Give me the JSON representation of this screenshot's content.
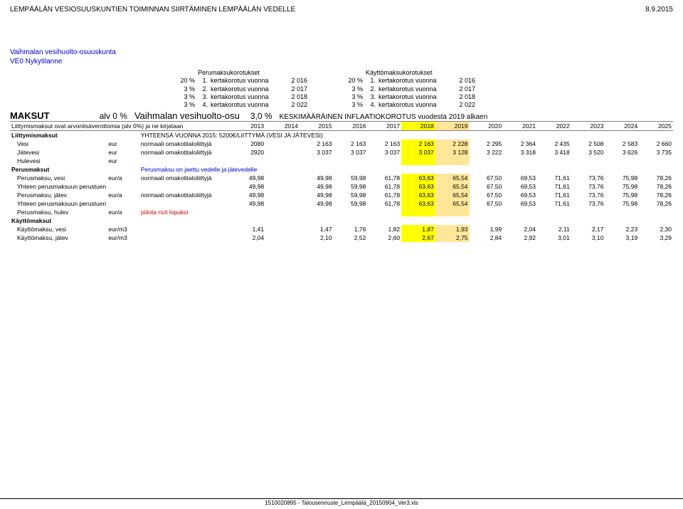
{
  "header": {
    "title": "LEMPÄÄLÄN VESIOSUUSKUNTIEN TOIMINNAN SIIRTÄMINEN LEMPÄÄLÄN VEDELLE",
    "date": "8.9.2015"
  },
  "title_block": {
    "line1": "Vaihmalan vesihuolto-osuuskunta",
    "line2": "VE0 Nykytilanne"
  },
  "korotukset": {
    "perus": {
      "title": "Perumaksukorotukset",
      "rows": [
        {
          "pct": "20 %",
          "ord": "1.",
          "label": "kertakorotus vuonna",
          "year": "2 016"
        },
        {
          "pct": "3 %",
          "ord": "2.",
          "label": "kertakorotus vuonna",
          "year": "2 017"
        },
        {
          "pct": "3 %",
          "ord": "3.",
          "label": "kertakorotus vuonna",
          "year": "2 018"
        },
        {
          "pct": "3 %",
          "ord": "4.",
          "label": "kertakorotus vuonna",
          "year": "2 022"
        }
      ]
    },
    "kaytto": {
      "title": "Käyttömaksukorotukset",
      "rows": [
        {
          "pct": "20 %",
          "ord": "1.",
          "label": "kertakorotus vuonna",
          "year": "2 016"
        },
        {
          "pct": "3 %",
          "ord": "2.",
          "label": "kertakorotus vuonna",
          "year": "2 017"
        },
        {
          "pct": "3 %",
          "ord": "3.",
          "label": "kertakorotus vuonna",
          "year": "2 018"
        },
        {
          "pct": "3 %",
          "ord": "4.",
          "label": "kertakorotus vuonna",
          "year": "2 022"
        }
      ]
    }
  },
  "maksut_row": {
    "big": "MAKSUT",
    "alv": "alv 0 %",
    "mid": "Vaihmalan vesihuolto-osu",
    "pct": "3,0 %",
    "rest": "KESKIMÄÄRÄINEN INFLAATIOKOROTUS vuodesta 2019 alkaen"
  },
  "year_header": {
    "first": "Liittymismaksut ovat arvonlisäverottomia (alv 0%) ja ne kirjataan",
    "years": [
      "2013",
      "2014",
      "2015",
      "2016",
      "2017",
      "2018",
      "2019",
      "2020",
      "2021",
      "2022",
      "2023",
      "2024",
      "2025"
    ]
  },
  "liittymis": {
    "section": "Liittymismaksut",
    "note": "YHTEENSÄ VUONNA 2015: 5200€/LIITTYMÄ (VESI JA JÄTEVESI)",
    "rows": [
      {
        "label": "Vesi",
        "unit": "eur",
        "desc": "normaali omakotitaloliittyjä",
        "y13": "2080",
        "vals": [
          "2 163",
          "2 163",
          "2 163",
          "2 163",
          "2 228",
          "2 295",
          "2 364",
          "2 435",
          "2 508",
          "2 583",
          "2 660"
        ]
      },
      {
        "label": "Jätevesi",
        "unit": "eur",
        "desc": "normaali omakotitaloliittyjä",
        "y13": "2920",
        "vals": [
          "3 037",
          "3 037",
          "3 037",
          "3 037",
          "3 128",
          "3 222",
          "3 318",
          "3 418",
          "3 520",
          "3 626",
          "3 735"
        ]
      },
      {
        "label": "Hulevesi",
        "unit": "eur",
        "desc": "",
        "y13": "",
        "vals": [
          "",
          "",
          "",
          "",
          "",
          "",
          "",
          "",
          "",
          "",
          ""
        ]
      }
    ]
  },
  "perusmaksut": {
    "section": "Perusmaksut",
    "note": "Perusmaksu on jaettu vedelle ja jätevedelle",
    "rows": [
      {
        "label": "Perusmaksu, vesi",
        "unit": "eur/a",
        "desc": "normaali omakotitaloliittyjä",
        "y13": "49,98",
        "vals": [
          "49,98",
          "59,98",
          "61,78",
          "63,63",
          "65,54",
          "67,50",
          "69,53",
          "71,61",
          "73,76",
          "75,98",
          "78,26"
        ]
      },
      {
        "label": "Yhteen perusmaksuun perustuen:",
        "unit": "",
        "desc": "",
        "y13": "49,98",
        "vals": [
          "49,98",
          "59,98",
          "61,78",
          "63,63",
          "65,54",
          "67,50",
          "69,53",
          "71,61",
          "73,76",
          "75,98",
          "78,26"
        ]
      },
      {
        "label": "Perusmaksu, jätev",
        "unit": "eur/a",
        "desc": "normaali omakotitaloliittyjä",
        "y13": "49,98",
        "vals": [
          "49,98",
          "59,98",
          "61,78",
          "63,63",
          "65,54",
          "67,50",
          "69,53",
          "71,61",
          "73,76",
          "75,98",
          "78,26"
        ]
      },
      {
        "label": "Yhteen perusmaksuun perustuen:",
        "unit": "",
        "desc": "",
        "y13": "49,98",
        "vals": [
          "49,98",
          "59,98",
          "61,78",
          "63,63",
          "65,54",
          "67,50",
          "69,53",
          "71,61",
          "73,76",
          "75,98",
          "78,26"
        ]
      },
      {
        "label": "Perusmaksu, hulev",
        "unit": "eur/a",
        "desc": "piilota rivit lopuksi",
        "y13": "",
        "vals": [
          "",
          "",
          "",
          "",
          "",
          "",
          "",
          "",
          "",
          "",
          ""
        ],
        "red": true
      }
    ]
  },
  "kayttomaksut": {
    "section": "Käyttömaksut",
    "rows": [
      {
        "label": "Käyttömaksu, vesi",
        "unit": "eur/m3",
        "desc": "",
        "y13": "1,41",
        "vals": [
          "1,47",
          "1,76",
          "1,82",
          "1,87",
          "1,93",
          "1,99",
          "2,04",
          "2,11",
          "2,17",
          "2,23",
          "2,30"
        ]
      },
      {
        "label": "Käyttömaksu, jätev",
        "unit": "eur/m3",
        "desc": "",
        "y13": "2,04",
        "vals": [
          "2,10",
          "2,52",
          "2,60",
          "2,67",
          "2,75",
          "2,84",
          "2,92",
          "3,01",
          "3,10",
          "3,19",
          "3,29"
        ]
      }
    ]
  },
  "colors": {
    "hl2018": "#ffff00",
    "hl2019": "#ffe699",
    "blue": "#0000cc",
    "red": "#cc0000"
  },
  "footer": "1510020895 - Talousennuste_Lempäälä_20150904_Ver3.xls"
}
